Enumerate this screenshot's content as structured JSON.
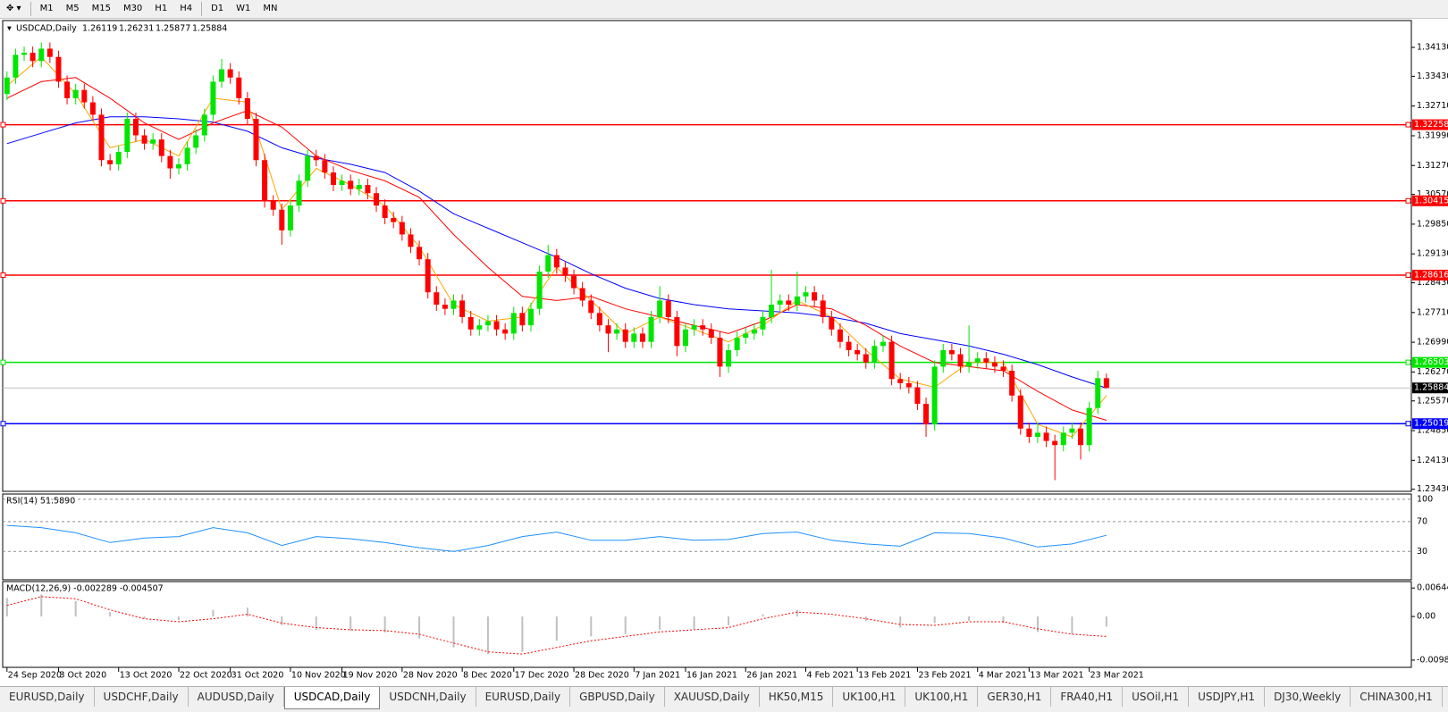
{
  "toolbar": {
    "timeframes": [
      "M1",
      "M5",
      "M15",
      "M30",
      "H1",
      "H4",
      "D1",
      "W1",
      "MN"
    ]
  },
  "tabs": {
    "items": [
      "EURUSD,Daily",
      "USDCHF,Daily",
      "AUDUSD,Daily",
      "USDCAD,Daily",
      "USDCNH,Daily",
      "EURUSD,Daily",
      "GBPUSD,Daily",
      "XAUUSD,Daily",
      "HK50,M15",
      "UK100,H1",
      "UK100,H1",
      "GER30,H1",
      "FRA40,H1",
      "USOil,H1",
      "USDJPY,H1",
      "DJ30,Weekly",
      "CHINA300,H1"
    ],
    "active": "USDCAD,Daily"
  },
  "chart_data": {
    "type": "candlestick",
    "title": "USDCAD,Daily",
    "up_color": "#00e600",
    "down_color": "#ff0000",
    "candles": [
      [
        1.33,
        1.3355,
        1.3285,
        1.334
      ],
      [
        1.334,
        1.341,
        1.3325,
        1.3395
      ],
      [
        1.3395,
        1.3415,
        1.338,
        1.34
      ],
      [
        1.34,
        1.3415,
        1.3365,
        1.338
      ],
      [
        1.338,
        1.3425,
        1.3365,
        1.341
      ],
      [
        1.341,
        1.3425,
        1.3375,
        1.339
      ],
      [
        1.339,
        1.3405,
        1.3315,
        1.333
      ],
      [
        1.333,
        1.3345,
        1.3275,
        1.329
      ],
      [
        1.329,
        1.3325,
        1.3275,
        1.331
      ],
      [
        1.331,
        1.3325,
        1.3265,
        1.328
      ],
      [
        1.328,
        1.3295,
        1.3235,
        1.325
      ],
      [
        1.325,
        1.3265,
        1.3125,
        1.314
      ],
      [
        1.314,
        1.3155,
        1.3115,
        1.313
      ],
      [
        1.313,
        1.3175,
        1.3115,
        1.316
      ],
      [
        1.316,
        1.3255,
        1.3145,
        1.324
      ],
      [
        1.324,
        1.3255,
        1.3185,
        1.32
      ],
      [
        1.32,
        1.3215,
        1.3165,
        1.318
      ],
      [
        1.318,
        1.3205,
        1.3165,
        1.319
      ],
      [
        1.319,
        1.3205,
        1.3135,
        1.315
      ],
      [
        1.315,
        1.3165,
        1.3095,
        1.312
      ],
      [
        1.312,
        1.3145,
        1.3105,
        1.313
      ],
      [
        1.313,
        1.3185,
        1.3115,
        1.317
      ],
      [
        1.317,
        1.3215,
        1.3155,
        1.32
      ],
      [
        1.32,
        1.3265,
        1.3185,
        1.325
      ],
      [
        1.325,
        1.3345,
        1.3235,
        1.333
      ],
      [
        1.333,
        1.3385,
        1.3315,
        1.336
      ],
      [
        1.336,
        1.3375,
        1.3325,
        1.334
      ],
      [
        1.334,
        1.3355,
        1.3275,
        1.329
      ],
      [
        1.329,
        1.3305,
        1.3225,
        1.324
      ],
      [
        1.324,
        1.3255,
        1.3125,
        1.314
      ],
      [
        1.314,
        1.3155,
        1.3025,
        1.304
      ],
      [
        1.304,
        1.3055,
        1.3005,
        1.302
      ],
      [
        1.302,
        1.3035,
        1.2935,
        1.297
      ],
      [
        1.297,
        1.3045,
        1.2955,
        1.303
      ],
      [
        1.303,
        1.3105,
        1.3015,
        1.309
      ],
      [
        1.309,
        1.3165,
        1.3075,
        1.315
      ],
      [
        1.315,
        1.3165,
        1.3125,
        1.314
      ],
      [
        1.314,
        1.3155,
        1.3095,
        1.311
      ],
      [
        1.311,
        1.3125,
        1.3065,
        1.308
      ],
      [
        1.308,
        1.3105,
        1.3065,
        1.309
      ],
      [
        1.309,
        1.3105,
        1.3055,
        1.307
      ],
      [
        1.307,
        1.3095,
        1.3055,
        1.308
      ],
      [
        1.308,
        1.3095,
        1.3045,
        1.306
      ],
      [
        1.306,
        1.3075,
        1.3015,
        1.303
      ],
      [
        1.303,
        1.3045,
        1.2985,
        1.3
      ],
      [
        1.3,
        1.3015,
        1.2975,
        1.299
      ],
      [
        1.299,
        1.3005,
        1.2945,
        1.296
      ],
      [
        1.296,
        1.2975,
        1.2915,
        1.293
      ],
      [
        1.293,
        1.2945,
        1.2885,
        1.29
      ],
      [
        1.29,
        1.2915,
        1.2805,
        1.282
      ],
      [
        1.282,
        1.2835,
        1.2775,
        1.279
      ],
      [
        1.279,
        1.2805,
        1.2765,
        1.278
      ],
      [
        1.278,
        1.2815,
        1.2765,
        1.28
      ],
      [
        1.28,
        1.2815,
        1.2745,
        1.276
      ],
      [
        1.276,
        1.2775,
        1.2715,
        1.273
      ],
      [
        1.273,
        1.2755,
        1.2715,
        1.274
      ],
      [
        1.274,
        1.2765,
        1.2725,
        1.275
      ],
      [
        1.275,
        1.2765,
        1.2715,
        1.273
      ],
      [
        1.273,
        1.2745,
        1.2705,
        1.272
      ],
      [
        1.272,
        1.2785,
        1.2705,
        1.277
      ],
      [
        1.277,
        1.2785,
        1.2725,
        1.274
      ],
      [
        1.274,
        1.2795,
        1.2725,
        1.278
      ],
      [
        1.278,
        1.2885,
        1.2765,
        1.287
      ],
      [
        1.287,
        1.2935,
        1.2855,
        1.291
      ],
      [
        1.291,
        1.2925,
        1.2865,
        1.288
      ],
      [
        1.288,
        1.2895,
        1.2845,
        1.286
      ],
      [
        1.286,
        1.2875,
        1.2815,
        1.283
      ],
      [
        1.283,
        1.2845,
        1.2785,
        1.28
      ],
      [
        1.28,
        1.2815,
        1.2755,
        1.277
      ],
      [
        1.277,
        1.2785,
        1.2725,
        1.274
      ],
      [
        1.274,
        1.2755,
        1.2675,
        1.272
      ],
      [
        1.272,
        1.2745,
        1.2705,
        1.273
      ],
      [
        1.273,
        1.2745,
        1.2685,
        1.27
      ],
      [
        1.27,
        1.2735,
        1.2685,
        1.272
      ],
      [
        1.272,
        1.2735,
        1.2685,
        1.27
      ],
      [
        1.27,
        1.2775,
        1.2685,
        1.276
      ],
      [
        1.276,
        1.2835,
        1.2745,
        1.28
      ],
      [
        1.28,
        1.2815,
        1.2745,
        1.276
      ],
      [
        1.276,
        1.2775,
        1.2665,
        1.269
      ],
      [
        1.269,
        1.2745,
        1.2675,
        1.273
      ],
      [
        1.273,
        1.2755,
        1.2715,
        1.274
      ],
      [
        1.274,
        1.2755,
        1.2715,
        1.273
      ],
      [
        1.273,
        1.2745,
        1.2695,
        1.271
      ],
      [
        1.271,
        1.2725,
        1.2615,
        1.264
      ],
      [
        1.264,
        1.2695,
        1.2625,
        1.268
      ],
      [
        1.268,
        1.2725,
        1.2665,
        1.271
      ],
      [
        1.271,
        1.2735,
        1.2695,
        1.272
      ],
      [
        1.272,
        1.2745,
        1.2705,
        1.273
      ],
      [
        1.273,
        1.2775,
        1.2715,
        1.276
      ],
      [
        1.276,
        1.2875,
        1.2745,
        1.279
      ],
      [
        1.279,
        1.2815,
        1.2775,
        1.28
      ],
      [
        1.28,
        1.2815,
        1.2775,
        1.279
      ],
      [
        1.279,
        1.287,
        1.2775,
        1.281
      ],
      [
        1.281,
        1.2835,
        1.2795,
        1.282
      ],
      [
        1.282,
        1.2835,
        1.2785,
        1.28
      ],
      [
        1.28,
        1.2815,
        1.2745,
        1.276
      ],
      [
        1.276,
        1.2775,
        1.2715,
        1.273
      ],
      [
        1.273,
        1.2745,
        1.2685,
        1.27
      ],
      [
        1.27,
        1.2715,
        1.2665,
        1.268
      ],
      [
        1.268,
        1.2695,
        1.2655,
        1.267
      ],
      [
        1.267,
        1.2685,
        1.2635,
        1.265
      ],
      [
        1.265,
        1.2705,
        1.2635,
        1.269
      ],
      [
        1.269,
        1.2715,
        1.2675,
        1.27
      ],
      [
        1.27,
        1.2715,
        1.2595,
        1.261
      ],
      [
        1.261,
        1.2625,
        1.2585,
        1.26
      ],
      [
        1.26,
        1.2615,
        1.2575,
        1.259
      ],
      [
        1.259,
        1.2605,
        1.2535,
        1.255
      ],
      [
        1.255,
        1.2565,
        1.247,
        1.25
      ],
      [
        1.25,
        1.2655,
        1.2485,
        1.264
      ],
      [
        1.264,
        1.2695,
        1.2625,
        1.268
      ],
      [
        1.268,
        1.2695,
        1.2655,
        1.267
      ],
      [
        1.267,
        1.2685,
        1.2625,
        1.264
      ],
      [
        1.264,
        1.274,
        1.2625,
        1.265
      ],
      [
        1.265,
        1.2675,
        1.2635,
        1.266
      ],
      [
        1.266,
        1.2675,
        1.2635,
        1.265
      ],
      [
        1.265,
        1.2665,
        1.2625,
        1.264
      ],
      [
        1.264,
        1.2655,
        1.2615,
        1.263
      ],
      [
        1.263,
        1.2645,
        1.2555,
        1.257
      ],
      [
        1.257,
        1.2585,
        1.2475,
        1.249
      ],
      [
        1.249,
        1.2505,
        1.2455,
        1.247
      ],
      [
        1.247,
        1.2505,
        1.2455,
        1.248
      ],
      [
        1.248,
        1.2495,
        1.2445,
        1.246
      ],
      [
        1.246,
        1.2475,
        1.2365,
        1.245
      ],
      [
        1.245,
        1.2495,
        1.2435,
        1.248
      ],
      [
        1.248,
        1.2505,
        1.2465,
        1.249
      ],
      [
        1.249,
        1.2505,
        1.2415,
        1.245
      ],
      [
        1.245,
        1.2555,
        1.2435,
        1.254
      ],
      [
        1.254,
        1.263,
        1.2525,
        1.2612
      ],
      [
        1.26119,
        1.26231,
        1.25877,
        1.25884
      ]
    ],
    "xlim": [
      -0.5,
      163.5
    ],
    "xticks": [
      {
        "value": 0,
        "label": "24 Sep 2020"
      },
      {
        "value": 6,
        "label": "3 Oct 2020"
      },
      {
        "value": 13,
        "label": "13 Oct 2020"
      },
      {
        "value": 20,
        "label": "22 Oct 2020"
      },
      {
        "value": 26,
        "label": "31 Oct 2020"
      },
      {
        "value": 33,
        "label": "10 Nov 2020"
      },
      {
        "value": 39,
        "label": "19 Nov 2020"
      },
      {
        "value": 46,
        "label": "28 Nov 2020"
      },
      {
        "value": 53,
        "label": "8 Dec 2020"
      },
      {
        "value": 59,
        "label": "17 Dec 2020"
      },
      {
        "value": 66,
        "label": "28 Dec 2020"
      },
      {
        "value": 73,
        "label": "7 Jan 2021"
      },
      {
        "value": 79,
        "label": "16 Jan 2021"
      },
      {
        "value": 86,
        "label": "26 Jan 2021"
      },
      {
        "value": 93,
        "label": "4 Feb 2021"
      },
      {
        "value": 99,
        "label": "13 Feb 2021"
      },
      {
        "value": 106,
        "label": "23 Feb 2021"
      },
      {
        "value": 113,
        "label": "4 Mar 2021"
      },
      {
        "value": 119,
        "label": "13 Mar 2021"
      },
      {
        "value": 126,
        "label": "23 Mar 2021"
      }
    ],
    "ylim": [
      1.2338,
      1.3478
    ],
    "yticks": [
      {
        "value": 1.3413,
        "label": "1.34130"
      },
      {
        "value": 1.3343,
        "label": "1.33430"
      },
      {
        "value": 1.3271,
        "label": "1.32710"
      },
      {
        "value": 1.3199,
        "label": "1.31990"
      },
      {
        "value": 1.3127,
        "label": "1.31270"
      },
      {
        "value": 1.3057,
        "label": "1.30570"
      },
      {
        "value": 1.2985,
        "label": "1.29850"
      },
      {
        "value": 1.2913,
        "label": "1.29130"
      },
      {
        "value": 1.2843,
        "label": "1.28430"
      },
      {
        "value": 1.2771,
        "label": "1.27710"
      },
      {
        "value": 1.2699,
        "label": "1.26990"
      },
      {
        "value": 1.2627,
        "label": "1.26270"
      },
      {
        "value": 1.2557,
        "label": "1.25570"
      },
      {
        "value": 1.2485,
        "label": "1.24850"
      },
      {
        "value": 1.2413,
        "label": "1.24130"
      },
      {
        "value": 1.2343,
        "label": "1.23430"
      }
    ],
    "moving_averages": {
      "x": [
        0,
        4,
        8,
        12,
        16,
        20,
        24,
        28,
        32,
        36,
        40,
        44,
        48,
        52,
        56,
        60,
        64,
        68,
        72,
        76,
        80,
        84,
        88,
        92,
        96,
        100,
        104,
        108,
        112,
        116,
        120,
        124,
        128
      ],
      "series": [
        {
          "color": "#0000ff",
          "values": [
            1.318,
            1.3205,
            1.323,
            1.3245,
            1.3245,
            1.324,
            1.3232,
            1.321,
            1.317,
            1.3145,
            1.313,
            1.311,
            1.3065,
            1.301,
            1.2975,
            1.294,
            1.2905,
            1.2865,
            1.283,
            1.2805,
            1.279,
            1.278,
            1.2775,
            1.277,
            1.276,
            1.2745,
            1.272,
            1.2705,
            1.269,
            1.267,
            1.2645,
            1.2615,
            1.2588
          ]
        },
        {
          "color": "#ff0000",
          "values": [
            1.329,
            1.333,
            1.334,
            1.329,
            1.323,
            1.319,
            1.323,
            1.326,
            1.322,
            1.315,
            1.3115,
            1.309,
            1.305,
            1.296,
            1.288,
            1.281,
            1.28,
            1.281,
            1.278,
            1.276,
            1.274,
            1.272,
            1.275,
            1.279,
            1.278,
            1.274,
            1.269,
            1.265,
            1.264,
            1.263,
            1.258,
            1.2535,
            1.251
          ]
        },
        {
          "color": "#ffa500",
          "values": [
            1.332,
            1.339,
            1.33,
            1.317,
            1.319,
            1.315,
            1.329,
            1.328,
            1.302,
            1.312,
            1.308,
            1.303,
            1.293,
            1.279,
            1.275,
            1.276,
            1.288,
            1.28,
            1.272,
            1.276,
            1.273,
            1.27,
            1.274,
            1.28,
            1.276,
            1.268,
            1.261,
            1.259,
            1.265,
            1.265,
            1.25,
            1.247,
            1.257
          ]
        }
      ]
    },
    "levels": [
      {
        "value": 1.32258,
        "color": "#ff0000"
      },
      {
        "value": 1.30415,
        "color": "#ff0000"
      },
      {
        "value": 1.28616,
        "color": "#ff0000"
      },
      {
        "value": 1.26503,
        "color": "#00e600"
      },
      {
        "value": 1.25019,
        "color": "#0000ff"
      }
    ],
    "current_price": {
      "value": 1.25884,
      "color": "#c0c0c0"
    },
    "rsi": {
      "label": "RSI(14) 51.5890",
      "color": "#1e90ff",
      "ylim": [
        -8,
        107
      ],
      "yticks": [
        100,
        70,
        30
      ],
      "x": [
        0,
        4,
        8,
        12,
        16,
        20,
        24,
        28,
        32,
        36,
        40,
        44,
        48,
        52,
        56,
        60,
        64,
        68,
        72,
        76,
        80,
        84,
        88,
        92,
        96,
        100,
        104,
        108,
        112,
        116,
        120,
        124,
        128
      ],
      "values": [
        65,
        62,
        55,
        42,
        48,
        50,
        62,
        55,
        38,
        50,
        47,
        42,
        35,
        30,
        38,
        50,
        56,
        45,
        45,
        50,
        45,
        46,
        54,
        56,
        45,
        40,
        37,
        55,
        54,
        48,
        36,
        40,
        51.6
      ]
    },
    "macd": {
      "label": "MACD(12,26,9) -0.002289 -0.004507",
      "hist_color": "#c0c0c0",
      "signal_color": "#ff0000",
      "ylim": [
        -0.0115,
        0.0079
      ],
      "yticks": [
        0.006444,
        {
          "value": 0,
          "label": "0.00"
        },
        -0.00987
      ],
      "x": [
        0,
        4,
        8,
        12,
        16,
        20,
        24,
        28,
        32,
        36,
        40,
        44,
        48,
        52,
        56,
        60,
        64,
        68,
        72,
        76,
        80,
        84,
        88,
        92,
        96,
        100,
        104,
        108,
        112,
        116,
        120,
        124,
        128
      ],
      "histogram": [
        0.0042,
        0.005,
        0.0035,
        0.001,
        -0.0005,
        -0.0008,
        0.0015,
        0.002,
        -0.002,
        -0.003,
        -0.0032,
        -0.0036,
        -0.005,
        -0.007,
        -0.0085,
        -0.008,
        -0.0055,
        -0.0045,
        -0.004,
        -0.003,
        -0.0028,
        -0.002,
        0.0005,
        0.0015,
        0.0,
        -0.001,
        -0.0025,
        -0.0015,
        -0.001,
        -0.0015,
        -0.0035,
        -0.004,
        -0.0023
      ],
      "signal": [
        0.0025,
        0.0045,
        0.004,
        0.0015,
        -0.0005,
        -0.0012,
        -0.0005,
        0.0005,
        -0.0015,
        -0.0025,
        -0.003,
        -0.0032,
        -0.004,
        -0.006,
        -0.008,
        -0.0085,
        -0.007,
        -0.0055,
        -0.0045,
        -0.0035,
        -0.003,
        -0.0025,
        -0.0005,
        0.001,
        0.0005,
        -0.0005,
        -0.0018,
        -0.002,
        -0.0012,
        -0.0012,
        -0.0028,
        -0.004,
        -0.0045
      ]
    }
  }
}
